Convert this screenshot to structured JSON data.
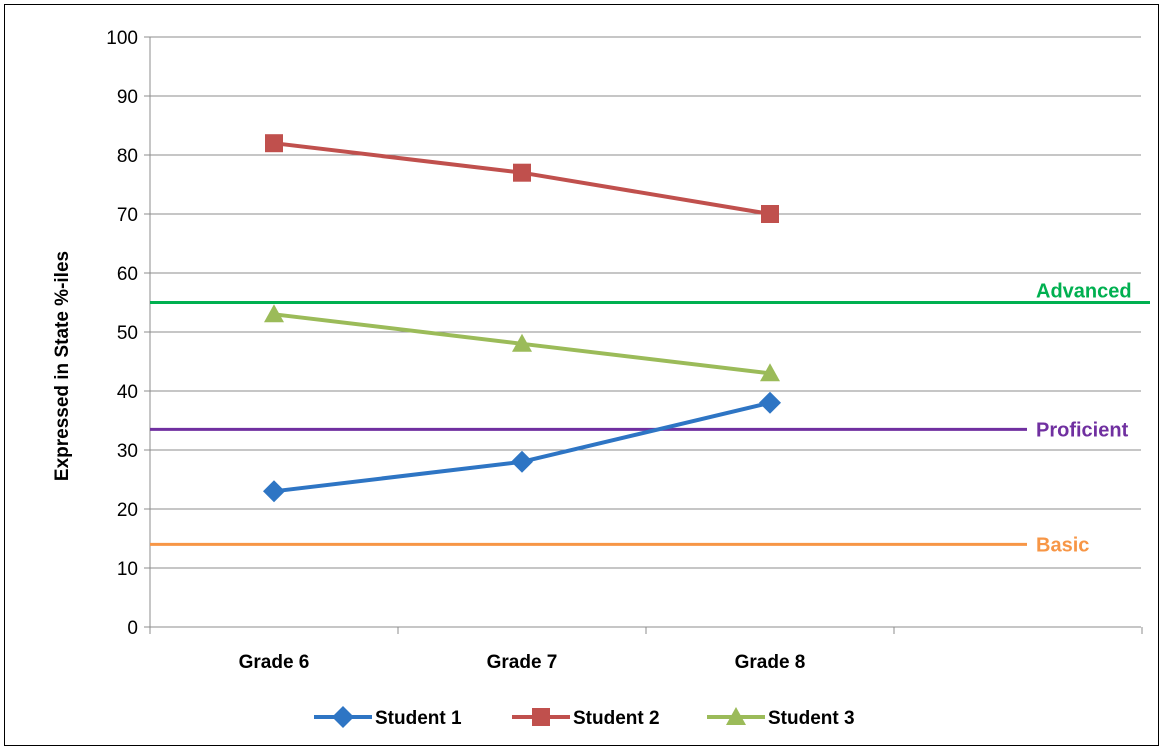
{
  "chart_data": {
    "type": "line",
    "title": "",
    "xlabel": "",
    "ylabel": "Expressed in State %-iles",
    "ylim": [
      0,
      100
    ],
    "yticks": [
      0,
      10,
      20,
      30,
      40,
      50,
      60,
      70,
      80,
      90,
      100
    ],
    "grid": true,
    "legend_position": "bottom",
    "categories": [
      "Grade 6",
      "Grade 7",
      "Grade 8"
    ],
    "series": [
      {
        "name": "Student 1",
        "values": [
          23,
          28,
          38
        ],
        "color": "#2E75C4",
        "marker": "diamond"
      },
      {
        "name": "Student 2",
        "values": [
          82,
          77,
          70
        ],
        "color": "#C0504D",
        "marker": "square"
      },
      {
        "name": "Student 3",
        "values": [
          53,
          48,
          43
        ],
        "color": "#9BBB59",
        "marker": "triangle"
      }
    ],
    "reference_lines": [
      {
        "label": "Advanced",
        "value": 55,
        "color": "#00B050"
      },
      {
        "label": "Proficient",
        "value": 33.5,
        "color": "#7030A0"
      },
      {
        "label": "Basic",
        "value": 14,
        "color": "#F79646"
      }
    ]
  }
}
